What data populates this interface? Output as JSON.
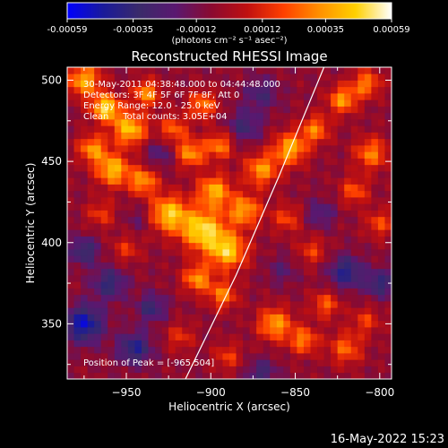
{
  "chart_data": {
    "type": "heatmap",
    "title": "Reconstructed RHESSI Image",
    "xlabel": "Heliocentric X (arcsec)",
    "ylabel": "Heliocentric Y (arcsec)",
    "xlim": [
      -985,
      -793
    ],
    "ylim": [
      316,
      508
    ],
    "x_ticks": [
      -950,
      -900,
      -850,
      -800
    ],
    "y_ticks": [
      350,
      400,
      450,
      500
    ],
    "colorbar": {
      "range": [
        -0.00059,
        0.00059
      ],
      "tick_values": [
        -0.00059,
        -0.00035,
        -0.00012,
        0.00012,
        0.00035,
        0.00059
      ],
      "tick_labels": [
        "-0.00059",
        "-0.00035",
        "-0.00012",
        "0.00012",
        "0.00035",
        "0.00059"
      ],
      "unit_label": "(photons cm⁻² s⁻¹ asec⁻²)",
      "colormap": [
        "#0000ff",
        "#1a1a9a",
        "#3a2a6a",
        "#5a1870",
        "#8a0a30",
        "#c01010",
        "#ff4000",
        "#ff9000",
        "#ffd000",
        "#ffffff"
      ]
    },
    "limb": [
      [
        -915,
        316
      ],
      [
        -885,
        380
      ],
      [
        -860,
        440
      ],
      [
        -833,
        508
      ]
    ],
    "blobs": [
      {
        "x": -975,
        "y": 500,
        "v": 0.00045,
        "s": 7
      },
      {
        "x": -962,
        "y": 483,
        "v": 0.00055,
        "s": 6
      },
      {
        "x": -948,
        "y": 470,
        "v": 0.0005,
        "s": 7
      },
      {
        "x": -970,
        "y": 458,
        "v": 0.0004,
        "s": 6
      },
      {
        "x": -958,
        "y": 445,
        "v": 0.00048,
        "s": 7
      },
      {
        "x": -938,
        "y": 492,
        "v": 0.00038,
        "s": 6
      },
      {
        "x": -922,
        "y": 470,
        "v": 0.0003,
        "s": 6
      },
      {
        "x": -905,
        "y": 485,
        "v": 0.00035,
        "s": 6
      },
      {
        "x": -940,
        "y": 438,
        "v": 0.0004,
        "s": 6
      },
      {
        "x": -925,
        "y": 418,
        "v": 0.0005,
        "s": 8
      },
      {
        "x": -905,
        "y": 408,
        "v": 0.00055,
        "s": 9
      },
      {
        "x": -890,
        "y": 395,
        "v": 0.0005,
        "s": 8
      },
      {
        "x": -898,
        "y": 432,
        "v": 0.00045,
        "s": 7
      },
      {
        "x": -880,
        "y": 420,
        "v": 0.00042,
        "s": 7
      },
      {
        "x": -912,
        "y": 455,
        "v": 0.0004,
        "s": 6
      },
      {
        "x": -895,
        "y": 460,
        "v": 0.00035,
        "s": 6
      },
      {
        "x": -908,
        "y": 378,
        "v": 0.0004,
        "s": 6
      },
      {
        "x": -893,
        "y": 368,
        "v": 0.00035,
        "s": 6
      },
      {
        "x": -870,
        "y": 445,
        "v": 0.0004,
        "s": 7
      },
      {
        "x": -853,
        "y": 458,
        "v": 0.00045,
        "s": 7
      },
      {
        "x": -838,
        "y": 470,
        "v": 0.00035,
        "s": 6
      },
      {
        "x": -822,
        "y": 488,
        "v": 0.0004,
        "s": 6
      },
      {
        "x": -808,
        "y": 498,
        "v": 0.00035,
        "s": 6
      },
      {
        "x": -805,
        "y": 455,
        "v": 0.00035,
        "s": 7
      },
      {
        "x": -815,
        "y": 432,
        "v": 0.00028,
        "s": 6
      },
      {
        "x": -800,
        "y": 412,
        "v": 0.00025,
        "s": 6
      },
      {
        "x": -855,
        "y": 415,
        "v": 0.00025,
        "s": 6
      },
      {
        "x": -840,
        "y": 395,
        "v": 0.00022,
        "s": 6
      },
      {
        "x": -862,
        "y": 350,
        "v": 0.00042,
        "s": 7
      },
      {
        "x": -845,
        "y": 340,
        "v": 0.00035,
        "s": 6
      },
      {
        "x": -832,
        "y": 362,
        "v": 0.00028,
        "s": 6
      },
      {
        "x": -820,
        "y": 335,
        "v": 0.0003,
        "s": 7
      },
      {
        "x": -808,
        "y": 352,
        "v": 0.00022,
        "s": 6
      },
      {
        "x": -965,
        "y": 418,
        "v": 0.00022,
        "s": 6
      },
      {
        "x": -950,
        "y": 396,
        "v": 0.0002,
        "s": 6
      },
      {
        "x": -918,
        "y": 342,
        "v": 0.0002,
        "s": 6
      },
      {
        "x": -890,
        "y": 330,
        "v": 0.00022,
        "s": 6
      },
      {
        "x": -960,
        "y": 375,
        "v": -0.0003,
        "s": 7
      },
      {
        "x": -975,
        "y": 350,
        "v": -0.00045,
        "s": 8
      },
      {
        "x": -945,
        "y": 335,
        "v": -0.00035,
        "s": 7
      },
      {
        "x": -935,
        "y": 360,
        "v": -0.00028,
        "s": 6
      },
      {
        "x": -975,
        "y": 395,
        "v": -0.0003,
        "s": 6
      },
      {
        "x": -930,
        "y": 455,
        "v": -0.00018,
        "s": 6
      },
      {
        "x": -880,
        "y": 472,
        "v": -0.00025,
        "s": 7
      },
      {
        "x": -870,
        "y": 492,
        "v": -0.00022,
        "s": 7
      },
      {
        "x": -820,
        "y": 382,
        "v": -0.00035,
        "s": 7
      },
      {
        "x": -800,
        "y": 375,
        "v": -0.0003,
        "s": 6
      },
      {
        "x": -835,
        "y": 418,
        "v": -0.0002,
        "s": 6
      },
      {
        "x": -858,
        "y": 383,
        "v": -0.00015,
        "s": 6
      },
      {
        "x": -870,
        "y": 320,
        "v": -0.00025,
        "s": 6
      },
      {
        "x": -942,
        "y": 415,
        "v": -0.00012,
        "s": 6
      }
    ]
  },
  "annotations": {
    "time_range": "30-May-2011 04:38:48.000 to 04:44:48.000",
    "detectors": "Detectors: 3F 4F 5F 6F 7F 8F, Att 0",
    "energy_range": "Energy Range: 12.0 - 25.0 keV",
    "clean_info": "Clean     Total counts: 3.05E+04",
    "peak_position": "Position of Peak = [-965,504]"
  },
  "timestamp": "16-May-2022 15:23"
}
